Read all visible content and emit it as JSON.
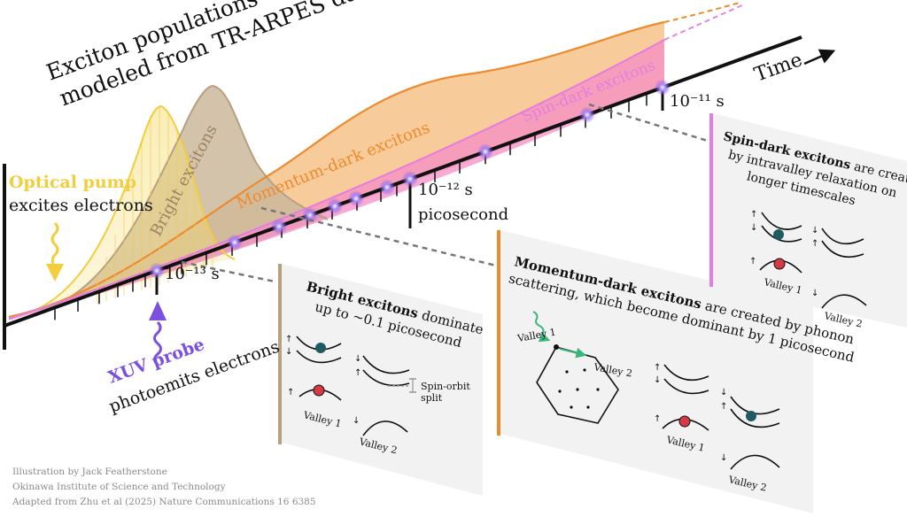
{
  "title": {
    "line1": "Exciton populations",
    "line2": "modeled from TR-ARPES data"
  },
  "axis": {
    "label": "Time"
  },
  "ticks": {
    "t13": "10⁻¹³ s",
    "t12": "10⁻¹² s",
    "picosecond": "picosecond",
    "t11": "10⁻¹¹ s"
  },
  "pump": {
    "title": "Optical pump",
    "line2": "excites electrons"
  },
  "probe": {
    "title": "XUV probe",
    "line2": "photoemits electrons"
  },
  "curves": {
    "bright": "Bright excitons",
    "momentum": "Momentum-dark excitons",
    "spin": "Spin-dark excitons"
  },
  "panels": {
    "bright": {
      "title": "Bright excitons",
      "rest1": " dominate",
      "line2": "up to ~0.1 picosecond",
      "split1": "Spin-orbit",
      "split2": "split",
      "valley1": "Valley 1",
      "valley2": "Valley 2"
    },
    "momentum": {
      "title": "Momentum-dark excitons",
      "rest1": " are created by phonon",
      "line2": "scattering, which become dominant by 1 picosecond",
      "valley1": "Valley 1",
      "valley2": "Valley 2",
      "hex_valley1": "Valley 1",
      "hex_valley2": "Valley 2"
    },
    "spin": {
      "title": "Spin-dark excitons",
      "rest1": " are created",
      "line2": "by intravalley relaxation on",
      "line3": "longer timescales",
      "valley1": "Valley 1",
      "valley2": "Valley 2"
    }
  },
  "credits": {
    "line1": "Illustration by Jack Featherstone",
    "line2": "Okinawa Institute of Science and Technology",
    "line3": "Adapted from Zhu et al (2025) Nature Communications 16 6385"
  },
  "colors": {
    "pump": "#f2cd3c",
    "probe": "#7b4fe0",
    "bright": "#b79f80",
    "momentum": "#ee8a2e",
    "spin": "#e57ce0",
    "exciton_red": "#d63a45",
    "exciton_teal": "#1e5b63",
    "phonon_green": "#3ab77c"
  }
}
